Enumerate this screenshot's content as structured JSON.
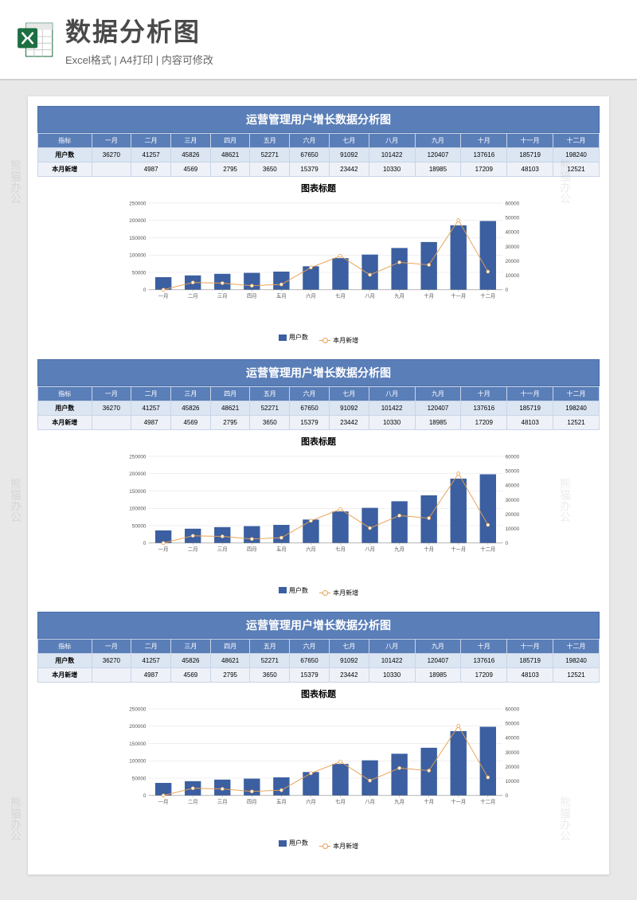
{
  "header": {
    "main_title": "数据分析图",
    "sub_title": "Excel格式 | A4打印 | 内容可修改",
    "icon_fill": "#1d6f42",
    "icon_accent": "#ffffff"
  },
  "panel": {
    "title": "运营管理用户增长数据分析图",
    "chart_title": "图表标题",
    "header_bg": "#5a7eb8",
    "row1_bg": "#dce6f2",
    "row2_bg": "#eef2f8",
    "columns": [
      "指标",
      "一月",
      "二月",
      "三月",
      "四月",
      "五月",
      "六月",
      "七月",
      "八月",
      "九月",
      "十月",
      "十一月",
      "十二月"
    ],
    "rows": [
      {
        "label": "用户数",
        "values": [
          36270,
          41257,
          45826,
          48621,
          52271,
          67650,
          91092,
          101422,
          120407,
          137616,
          185719,
          198240
        ]
      },
      {
        "label": "本月新增",
        "values": [
          "",
          4987,
          4569,
          2795,
          3650,
          15379,
          23442,
          10330,
          18985,
          17209,
          48103,
          12521
        ]
      }
    ],
    "legend": {
      "bar": "用户数",
      "line": "本月新增"
    }
  },
  "chart": {
    "type": "bar+line",
    "categories": [
      "一月",
      "二月",
      "三月",
      "四月",
      "五月",
      "六月",
      "七月",
      "八月",
      "九月",
      "十月",
      "十一月",
      "十二月"
    ],
    "bar_values": [
      36270,
      41257,
      45826,
      48621,
      52271,
      67650,
      91092,
      101422,
      120407,
      137616,
      185719,
      198240
    ],
    "line_values": [
      0,
      4987,
      4569,
      2795,
      3650,
      15379,
      23442,
      10330,
      18985,
      17209,
      48103,
      12521
    ],
    "bar_color": "#3b5fa0",
    "line_color": "#e8a050",
    "marker_fill": "#ffffff",
    "grid_color": "#d8d8d8",
    "axis_color": "#888888",
    "text_color": "#555555",
    "left_axis": {
      "min": 0,
      "max": 250000,
      "step": 50000
    },
    "right_axis": {
      "min": 0,
      "max": 60000,
      "step": 10000
    },
    "bar_width_ratio": 0.55,
    "font_size": 8,
    "background": "#ffffff"
  },
  "repeat_count": 3,
  "watermark": "熊猫办公"
}
